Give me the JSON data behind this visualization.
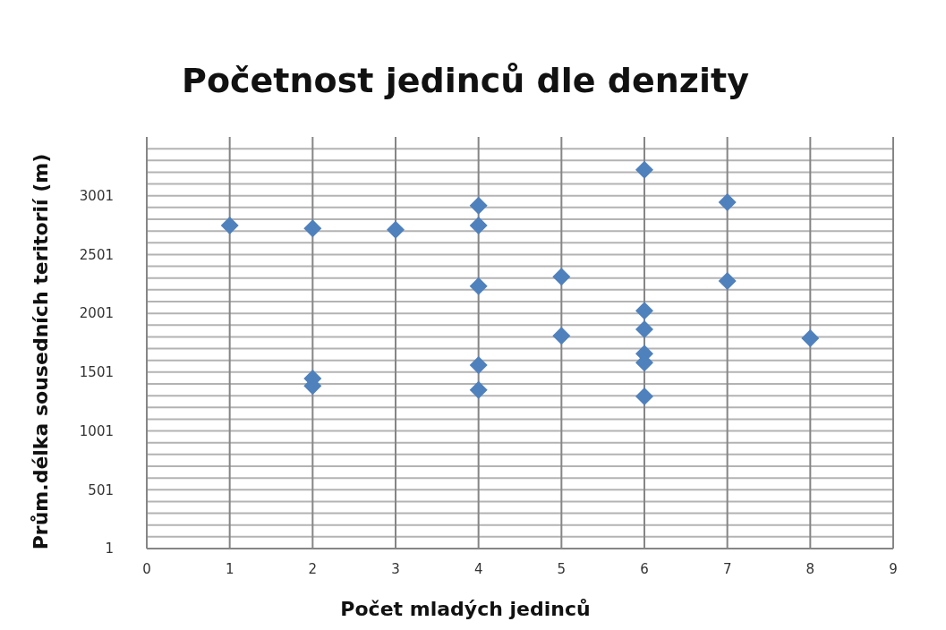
{
  "chart_data": {
    "type": "scatter",
    "title": "Početnost jedinců dle denzity",
    "xlabel": "Počet mladých jedinců",
    "ylabel": "Prům.délka sousedních teritorií (m)",
    "series": [
      {
        "color": "#4f81bd",
        "x": [
          1,
          2,
          2,
          2,
          3,
          4,
          4,
          4,
          4,
          4,
          5,
          5,
          6,
          6,
          6,
          6,
          6,
          6,
          7,
          7,
          8
        ],
        "values": [
          2748,
          2723,
          1447,
          1383,
          2712,
          2917,
          2748,
          2233,
          1561,
          1350,
          2312,
          1810,
          3222,
          2023,
          1865,
          1657,
          1581,
          1294,
          2946,
          2276,
          1789
        ]
      }
    ],
    "marker": "diamond",
    "grid": true,
    "xlim": [
      0,
      9
    ],
    "xticks": [
      0,
      1,
      2,
      3,
      4,
      5,
      6,
      7,
      8,
      9
    ],
    "ylim": [
      1,
      3501
    ],
    "yticks": [
      1,
      {
        "value": 101,
        "label": null
      },
      {
        "value": 201,
        "label": null
      },
      {
        "value": 301,
        "label": null
      },
      {
        "value": 401,
        "label": null
      },
      501,
      {
        "value": 601,
        "label": null
      },
      {
        "value": 701,
        "label": null
      },
      {
        "value": 801,
        "label": null
      },
      {
        "value": 901,
        "label": null
      },
      1001,
      {
        "value": 1101,
        "label": null
      },
      {
        "value": 1201,
        "label": null
      },
      {
        "value": 1301,
        "label": null
      },
      {
        "value": 1401,
        "label": null
      },
      1501,
      {
        "value": 1601,
        "label": null
      },
      {
        "value": 1701,
        "label": null
      },
      {
        "value": 1801,
        "label": null
      },
      {
        "value": 1901,
        "label": null
      },
      2001,
      {
        "value": 2101,
        "label": null
      },
      {
        "value": 2201,
        "label": null
      },
      {
        "value": 2301,
        "label": null
      },
      {
        "value": 2401,
        "label": null
      },
      2501,
      {
        "value": 2601,
        "label": null
      },
      {
        "value": 2701,
        "label": null
      },
      {
        "value": 2801,
        "label": null
      },
      {
        "value": 2901,
        "label": null
      },
      3001,
      {
        "value": 3101,
        "label": null
      },
      {
        "value": 3201,
        "label": null
      },
      {
        "value": 3301,
        "label": null
      },
      {
        "value": 3401,
        "label": null
      }
    ]
  }
}
